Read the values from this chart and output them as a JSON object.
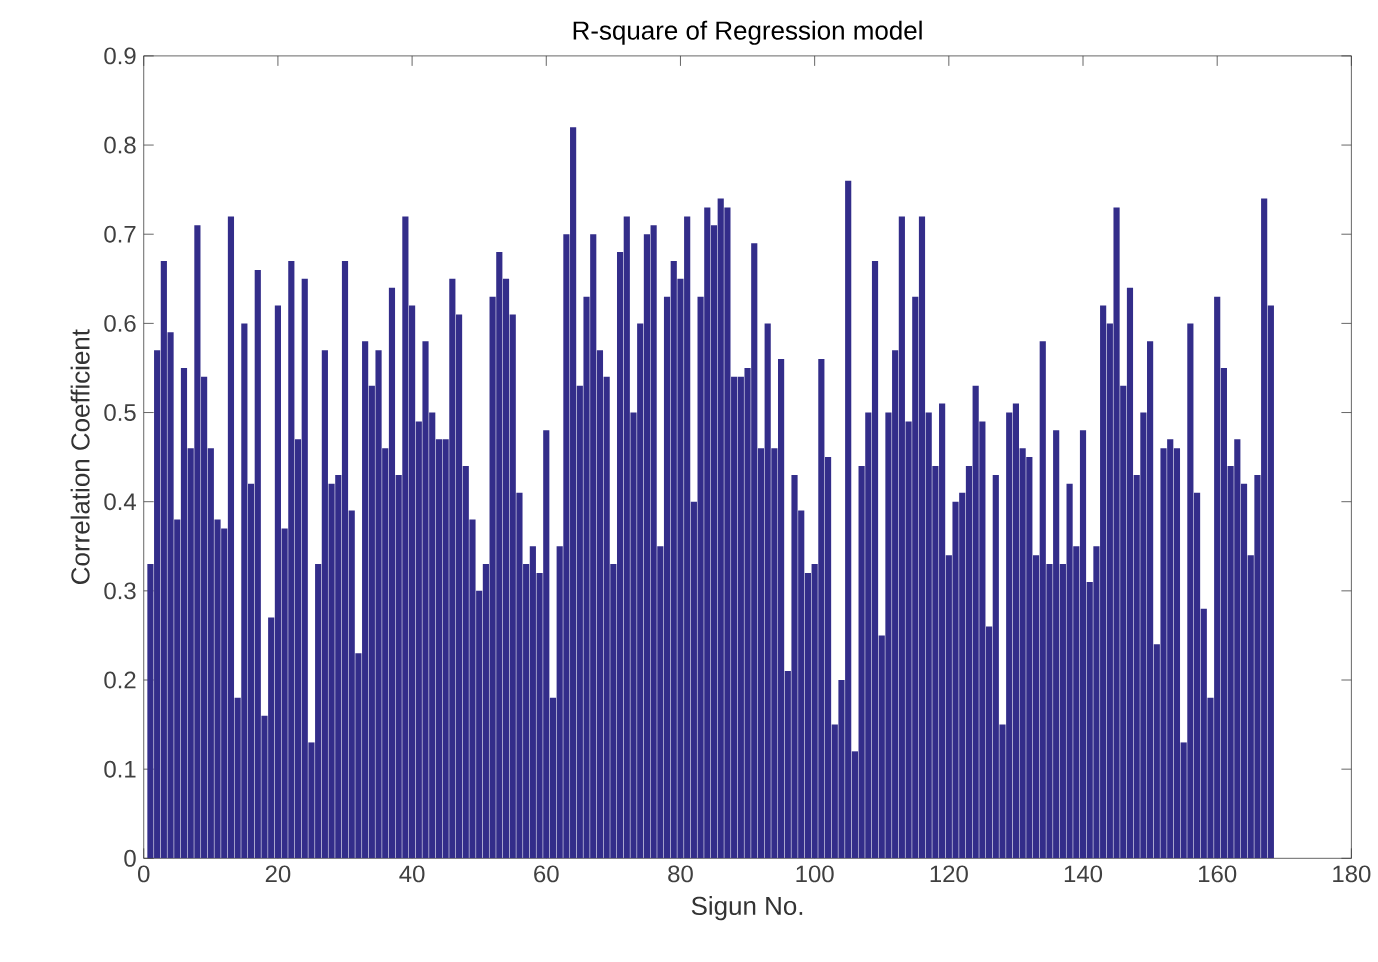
{
  "chart_data": {
    "type": "bar",
    "title": "R-square of Regression model",
    "xlabel": "Sigun No.",
    "ylabel": "Correlation Coefficient",
    "color": "#332d8a",
    "x": [
      1,
      2,
      3,
      4,
      5,
      6,
      7,
      8,
      9,
      10,
      11,
      12,
      13,
      14,
      15,
      16,
      17,
      18,
      19,
      20,
      21,
      22,
      23,
      24,
      25,
      26,
      27,
      28,
      29,
      30,
      31,
      32,
      33,
      34,
      35,
      36,
      37,
      38,
      39,
      40,
      41,
      42,
      43,
      44,
      45,
      46,
      47,
      48,
      49,
      50,
      51,
      52,
      53,
      54,
      55,
      56,
      57,
      58,
      59,
      60,
      61,
      62,
      63,
      64,
      65,
      66,
      67,
      68,
      69,
      70,
      71,
      72,
      73,
      74,
      75,
      76,
      77,
      78,
      79,
      80,
      81,
      82,
      83,
      84,
      85,
      86,
      87,
      88,
      89,
      90,
      91,
      92,
      93,
      94,
      95,
      96,
      97,
      98,
      99,
      100,
      101,
      102,
      103,
      104,
      105,
      106,
      107,
      108,
      109,
      110,
      111,
      112,
      113,
      114,
      115,
      116,
      117,
      118,
      119,
      120,
      121,
      122,
      123,
      124,
      125,
      126,
      127,
      128,
      129,
      130,
      131,
      132,
      133,
      134,
      135,
      136,
      137,
      138,
      139,
      140,
      141,
      142,
      143,
      144,
      145,
      146,
      147,
      148,
      149,
      150,
      151,
      152,
      153,
      154,
      155,
      156,
      157,
      158,
      159,
      160,
      161,
      162,
      163,
      164,
      165,
      166,
      167,
      168
    ],
    "values": [
      0.33,
      0.57,
      0.67,
      0.59,
      0.38,
      0.55,
      0.46,
      0.71,
      0.54,
      0.46,
      0.38,
      0.37,
      0.72,
      0.18,
      0.6,
      0.42,
      0.66,
      0.16,
      0.27,
      0.62,
      0.37,
      0.67,
      0.47,
      0.65,
      0.13,
      0.33,
      0.57,
      0.42,
      0.43,
      0.67,
      0.39,
      0.23,
      0.58,
      0.53,
      0.57,
      0.46,
      0.64,
      0.43,
      0.72,
      0.62,
      0.49,
      0.58,
      0.5,
      0.47,
      0.47,
      0.65,
      0.61,
      0.44,
      0.38,
      0.3,
      0.33,
      0.63,
      0.68,
      0.65,
      0.61,
      0.41,
      0.33,
      0.35,
      0.32,
      0.48,
      0.18,
      0.35,
      0.7,
      0.82,
      0.53,
      0.63,
      0.7,
      0.57,
      0.54,
      0.33,
      0.68,
      0.72,
      0.5,
      0.6,
      0.7,
      0.71,
      0.35,
      0.63,
      0.67,
      0.65,
      0.72,
      0.4,
      0.63,
      0.73,
      0.71,
      0.74,
      0.73,
      0.54,
      0.54,
      0.55,
      0.69,
      0.46,
      0.6,
      0.46,
      0.56,
      0.21,
      0.43,
      0.39,
      0.32,
      0.33,
      0.56,
      0.45,
      0.15,
      0.2,
      0.76,
      0.12,
      0.44,
      0.5,
      0.67,
      0.25,
      0.5,
      0.57,
      0.72,
      0.49,
      0.63,
      0.72,
      0.5,
      0.44,
      0.51,
      0.34,
      0.4,
      0.41,
      0.44,
      0.53,
      0.49,
      0.26,
      0.43,
      0.15,
      0.5,
      0.51,
      0.46,
      0.45,
      0.34,
      0.58,
      0.33,
      0.48,
      0.33,
      0.42,
      0.35,
      0.48,
      0.31,
      0.35,
      0.62,
      0.6,
      0.73,
      0.53,
      0.64,
      0.43,
      0.5,
      0.58,
      0.24,
      0.46,
      0.47,
      0.46,
      0.13,
      0.6,
      0.41,
      0.28,
      0.18,
      0.63,
      0.55,
      0.44,
      0.47,
      0.42,
      0.34,
      0.43,
      0.74,
      0.62
    ],
    "xlim": [
      0,
      180
    ],
    "xticks": [
      0,
      20,
      40,
      60,
      80,
      100,
      120,
      140,
      160,
      180
    ],
    "ylim": [
      0,
      0.9
    ],
    "yticks": [
      0,
      0.1,
      0.2,
      0.3,
      0.4,
      0.5,
      0.6,
      0.7,
      0.8,
      0.9
    ]
  }
}
